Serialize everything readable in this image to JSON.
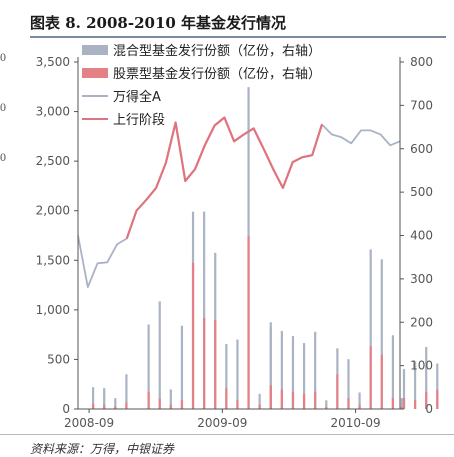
{
  "figure": {
    "title": "图表 8. 2008-2010 年基金发行情况",
    "source": "资料来源：万得，中银证券",
    "left_edge_fragments": [
      "0",
      "0",
      "0"
    ]
  },
  "colors": {
    "hybrid_bar": "#a9b3c4",
    "equity_bar": "#e58087",
    "index_line": "#a9b3c4",
    "upcycle_line": "#e0737c",
    "axis": "#555555",
    "tick_text": "#555555"
  },
  "chart_data": {
    "type": "bar",
    "title": "",
    "x_tick_labels": [
      "2008-09",
      "2009-09",
      "2010-09"
    ],
    "x_range": [
      "2008-08",
      "2010-12"
    ],
    "y_left": {
      "min": 0,
      "max": 3500,
      "ticks": [
        "0",
        "500",
        "1,000",
        "1,500",
        "2,000",
        "2,500",
        "3,000",
        "3,500"
      ]
    },
    "y_right": {
      "min": 0,
      "max": 800,
      "ticks": [
        "0",
        "100",
        "200",
        "300",
        "400",
        "500",
        "600",
        "700",
        "800"
      ]
    },
    "grid": false,
    "legend_position": "top-left",
    "bar_series": [
      {
        "name": "混合型基金发行份额（亿份，右轴）",
        "axis": "right",
        "color": "hybrid_bar",
        "points": [
          [
            "2008-09",
            50
          ],
          [
            "2008-10",
            48
          ],
          [
            "2008-11",
            25
          ],
          [
            "2008-12",
            80
          ],
          [
            "2009-02",
            195
          ],
          [
            "2009-03",
            248
          ],
          [
            "2009-04",
            45
          ],
          [
            "2009-05",
            192
          ],
          [
            "2009-06",
            455
          ],
          [
            "2009-07",
            455
          ],
          [
            "2009-08",
            360
          ],
          [
            "2009-09",
            150
          ],
          [
            "2009-10",
            160
          ],
          [
            "2009-11",
            742
          ],
          [
            "2009-12",
            35
          ],
          [
            "2009-12-31",
            200
          ],
          [
            "2010-01",
            185
          ],
          [
            "2010-02",
            180
          ],
          [
            "2010-03",
            168
          ],
          [
            "2010-04",
            152
          ],
          [
            "2010-05",
            178
          ],
          [
            "2010-06",
            20
          ],
          [
            "2010-07",
            140
          ],
          [
            "2010-08",
            115
          ],
          [
            "2010-09",
            38
          ],
          [
            "2010-10",
            368
          ],
          [
            "2010-11",
            345
          ],
          [
            "2010-12",
            170
          ],
          [
            "2010-12-25",
            25
          ],
          [
            "2011-01",
            92
          ],
          [
            "2011-02",
            110
          ],
          [
            "2011-03",
            143
          ],
          [
            "2011-04",
            105
          ]
        ]
      },
      {
        "name": "股票型基金发行份额（亿份，右轴）",
        "axis": "right",
        "color": "equity_bar",
        "points": [
          [
            "2008-09",
            12
          ],
          [
            "2008-10",
            10
          ],
          [
            "2008-11",
            6
          ],
          [
            "2008-12",
            15
          ],
          [
            "2009-02",
            40
          ],
          [
            "2009-03",
            24
          ],
          [
            "2009-04",
            10
          ],
          [
            "2009-05",
            20
          ],
          [
            "2009-06",
            337
          ],
          [
            "2009-07",
            210
          ],
          [
            "2009-08",
            205
          ],
          [
            "2009-09",
            48
          ],
          [
            "2009-10",
            20
          ],
          [
            "2009-11",
            398
          ],
          [
            "2009-12",
            10
          ],
          [
            "2009-12-31",
            55
          ],
          [
            "2010-01",
            50
          ],
          [
            "2010-02",
            45
          ],
          [
            "2010-03",
            40
          ],
          [
            "2010-04",
            35
          ],
          [
            "2010-05",
            40
          ],
          [
            "2010-06",
            5
          ],
          [
            "2010-07",
            80
          ],
          [
            "2010-08",
            25
          ],
          [
            "2010-09",
            10
          ],
          [
            "2010-10",
            145
          ],
          [
            "2010-11",
            125
          ],
          [
            "2010-12",
            25
          ],
          [
            "2010-12-25",
            5
          ],
          [
            "2011-01",
            25
          ],
          [
            "2011-02",
            20
          ],
          [
            "2011-03",
            40
          ],
          [
            "2011-04",
            45
          ]
        ]
      }
    ],
    "line_series": [
      {
        "name": "万得全A",
        "axis": "left",
        "color": "index_line",
        "points": [
          [
            0,
            1750
          ],
          [
            4,
            1230
          ],
          [
            8,
            1470
          ],
          [
            12,
            1480
          ],
          [
            16,
            1660
          ],
          [
            20,
            1720
          ],
          [
            24,
            2000
          ],
          [
            28,
            2110
          ],
          [
            32,
            2230
          ],
          [
            36,
            2480
          ],
          [
            40,
            2890
          ],
          [
            44,
            2300
          ],
          [
            48,
            2420
          ],
          [
            52,
            2660
          ],
          [
            56,
            2860
          ],
          [
            60,
            2940
          ],
          [
            64,
            2700
          ],
          [
            68,
            2770
          ],
          [
            72,
            2830
          ],
          [
            76,
            2630
          ],
          [
            80,
            2420
          ],
          [
            84,
            2230
          ],
          [
            88,
            2490
          ],
          [
            92,
            2540
          ],
          [
            96,
            2560
          ],
          [
            100,
            2870
          ],
          [
            104,
            2770
          ],
          [
            108,
            2740
          ],
          [
            112,
            2680
          ],
          [
            116,
            2810
          ],
          [
            120,
            2810
          ],
          [
            124,
            2770
          ],
          [
            128,
            2660
          ],
          [
            132,
            2700
          ]
        ]
      },
      {
        "name": "上行阶段",
        "axis": "left",
        "color": "upcycle_line",
        "points": [
          [
            20,
            1720
          ],
          [
            24,
            2000
          ],
          [
            28,
            2110
          ],
          [
            32,
            2230
          ],
          [
            36,
            2480
          ],
          [
            40,
            2890
          ],
          [
            44,
            2300
          ],
          [
            48,
            2420
          ],
          [
            52,
            2660
          ],
          [
            56,
            2860
          ],
          [
            60,
            2940
          ],
          [
            64,
            2700
          ],
          [
            68,
            2770
          ],
          [
            72,
            2830
          ],
          [
            76,
            2630
          ],
          [
            80,
            2420
          ],
          [
            84,
            2230
          ],
          [
            88,
            2490
          ],
          [
            92,
            2540
          ],
          [
            96,
            2560
          ],
          [
            100,
            2870
          ]
        ]
      }
    ]
  }
}
